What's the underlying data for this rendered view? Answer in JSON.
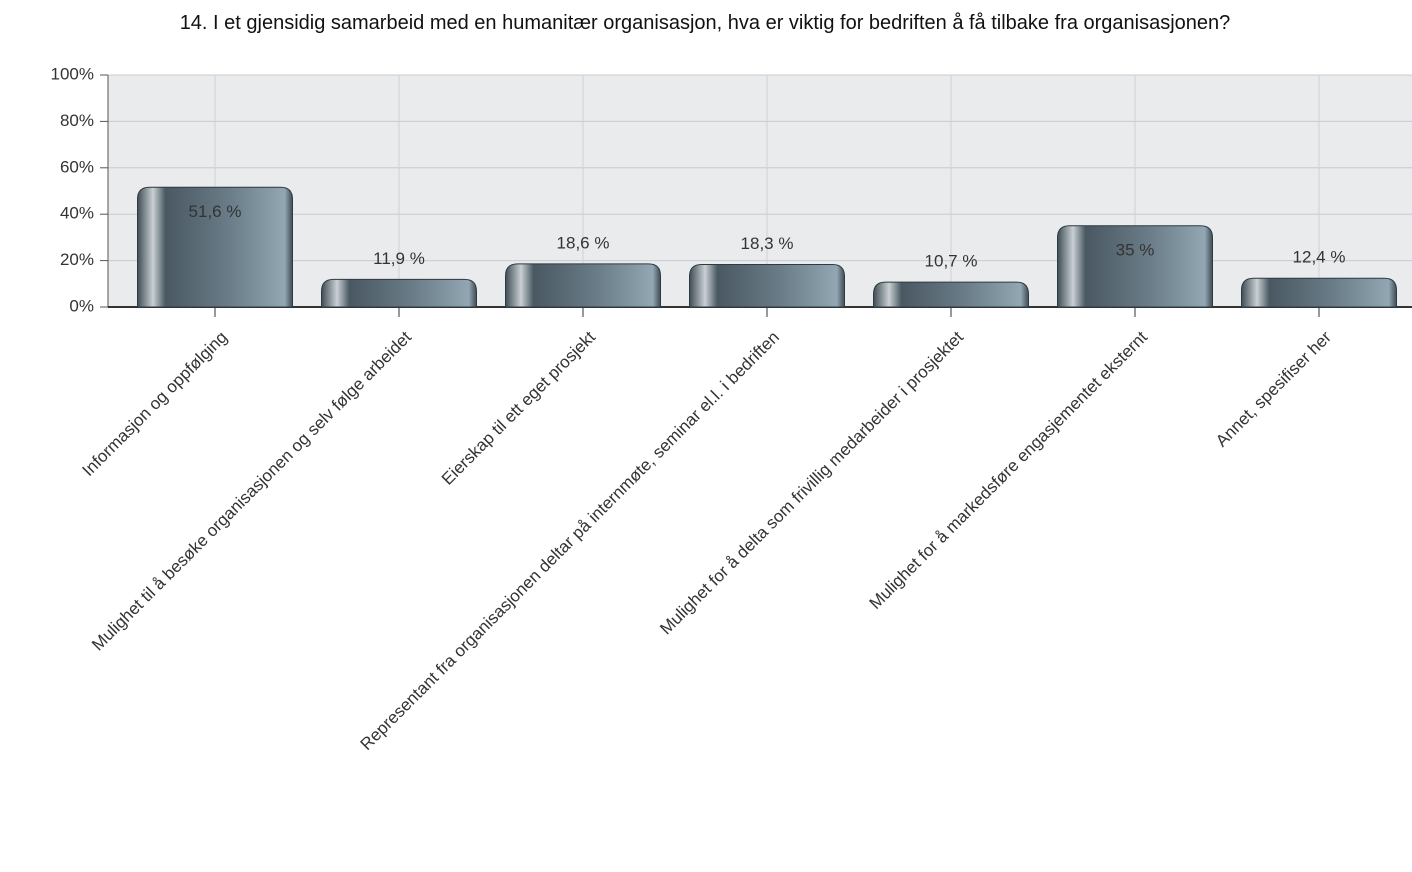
{
  "chart_data": {
    "type": "bar",
    "title": "14. I et gjensidig samarbeid med en humanitær organisasjon, hva er viktig for bedriften å få tilbake fra organisasjonen?",
    "categories": [
      "Informasjon og oppfølging",
      "Mulighet til å besøke organisasjonen og selv følge arbeidet",
      "Eierskap til ett eget prosjekt",
      "Representant fra organisasjonen deltar på internmøte, seminar el.l. i bedriften",
      "Mulighet for å delta som frivillig medarbeider i prosjektet",
      "Mulighet for å markedsføre engasjementet eksternt",
      "Annet, spesifiser her"
    ],
    "values": [
      51.6,
      11.9,
      18.6,
      18.3,
      10.7,
      35,
      12.4
    ],
    "value_labels": [
      "51,6 %",
      "11,9 %",
      "18,6 %",
      "18,3 %",
      "10,7 %",
      "35 %",
      "12,4 %"
    ],
    "color": "#5f717c",
    "ylim": [
      0,
      100
    ],
    "yticks": [
      {
        "value": 0,
        "label": "0%"
      },
      {
        "value": 20,
        "label": "20%"
      },
      {
        "value": 40,
        "label": "40%"
      },
      {
        "value": 60,
        "label": "60%"
      },
      {
        "value": 80,
        "label": "80%"
      },
      {
        "value": 100,
        "label": "100%"
      }
    ],
    "grid": true
  }
}
